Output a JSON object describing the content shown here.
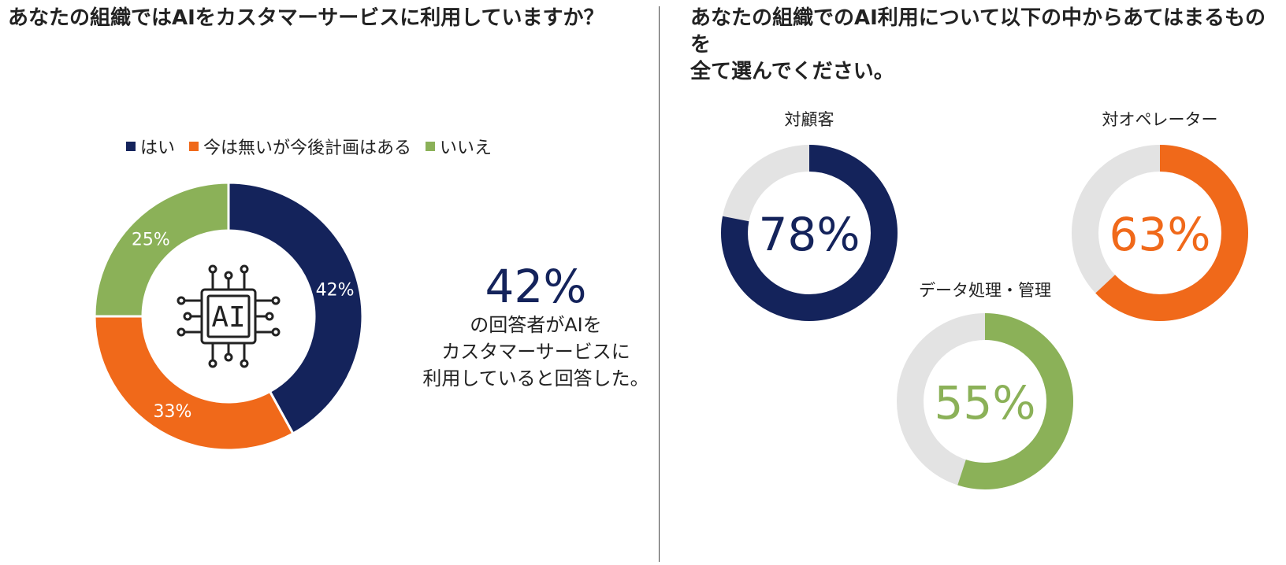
{
  "q1": {
    "title": "あなたの組織ではAIをカスタマーサービスに利用していますか？",
    "legend": [
      {
        "label": "はい",
        "color": "#14235b"
      },
      {
        "label": "今は無いが今後計画はある",
        "color": "#f0691a"
      },
      {
        "label": "いいえ",
        "color": "#8bb158"
      }
    ],
    "center_icon": "ai-chip-icon",
    "big_stat": {
      "value": "42%",
      "lines": [
        "の回答者がAIを",
        "カスタマーサービスに",
        "利用していると回答した。"
      ]
    }
  },
  "q2": {
    "title_lines": [
      "あなたの組織でのAI利用について以下の中からあてはまるものを",
      "全て選んでください。"
    ]
  },
  "chart_data": [
    {
      "type": "pie",
      "variant": "donut",
      "categories": [
        "はい",
        "今は無いが今後計画はある",
        "いいえ"
      ],
      "values": [
        42,
        33,
        25
      ],
      "labels": [
        "42%",
        "33%",
        "25%"
      ],
      "colors": [
        "#14235b",
        "#f0691a",
        "#8bb158"
      ],
      "legend": "top"
    },
    {
      "type": "pie",
      "variant": "donut",
      "title": "対顧客",
      "value": 78,
      "label": "78%",
      "color": "#14235b",
      "remainder_color": "#e3e3e3"
    },
    {
      "type": "pie",
      "variant": "donut",
      "title": "対オペレーター",
      "value": 63,
      "label": "63%",
      "color": "#f0691a",
      "remainder_color": "#e3e3e3"
    },
    {
      "type": "pie",
      "variant": "donut",
      "title": "データ処理・管理",
      "value": 55,
      "label": "55%",
      "color": "#8bb158",
      "remainder_color": "#e3e3e3"
    }
  ]
}
